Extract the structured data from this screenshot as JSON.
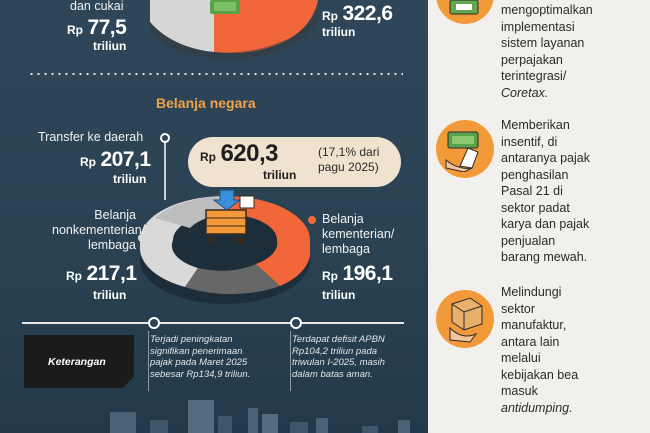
{
  "penerimaan": {
    "left_label_tail": "dan cukai",
    "left_prefix": "Rp",
    "left_value": "77,5",
    "left_unit": "triliun",
    "right_prefix": "Rp",
    "right_value": "322,6",
    "right_unit": "triliun"
  },
  "belanja": {
    "title": "Belanja negara",
    "transfer_label": "Transfer ke daerah",
    "transfer_prefix": "Rp",
    "transfer_value": "207,1",
    "transfer_unit": "triliun",
    "total_prefix": "Rp",
    "total_value": "620,3",
    "total_unit": "triliun",
    "total_note_line1": "(17,1% dari",
    "total_note_line2": "pagu 2025)",
    "nonkem_label_line1": "Belanja",
    "nonkem_label_line2": "nonkementerian/",
    "nonkem_label_line3": "lembaga",
    "nonkem_prefix": "Rp",
    "nonkem_value": "217,1",
    "nonkem_unit": "triliun",
    "kem_label_line1": "Belanja",
    "kem_label_line2": "kementerian/",
    "kem_label_line3": "lembaga",
    "kem_prefix": "Rp",
    "kem_value": "196,1",
    "kem_unit": "triliun"
  },
  "keterangan": {
    "badge": "Keterangan",
    "note1_line1": "Terjadi peningkatan",
    "note1_line2": "signifikan penerimaan",
    "note1_line3": "pajak pada Maret 2025",
    "note1_line4": "sebesar Rp134,9 triliun.",
    "note2_line1": "Terdapat defisit APBN",
    "note2_line2": "Rp104,2 triliun pada",
    "note2_line3": "triwulan I-2025, masih",
    "note2_line4": "dalam batas aman."
  },
  "kebijakan": {
    "item1_line1": "mengoptimalkan",
    "item1_line2": "implementasi",
    "item1_line3": "sistem layanan",
    "item1_line4": "perpajakan",
    "item1_line5": "terintegrasi/",
    "item1_line6": "Coretax.",
    "item2_line1": "Memberikan",
    "item2_line2": "insentif, di",
    "item2_line3": "antaranya pajak",
    "item2_line4": "penghasilan",
    "item2_line5": "Pasal 21 di",
    "item2_line6": "sektor padat",
    "item2_line7": "karya dan pajak",
    "item2_line8": "penjualan",
    "item2_line9": "barang mewah.",
    "item3_line1": "Melindungi",
    "item3_line2": "sektor",
    "item3_line3": "manufaktur,",
    "item3_line4": "antara lain",
    "item3_line5": "melalui",
    "item3_line6": "kebijakan bea",
    "item3_line7": "masuk",
    "item3_line8": "antidumping."
  },
  "colors": {
    "accent_orange": "#f1673a",
    "title_orange": "#f0a14a",
    "donut_grey": "#d7d7d7",
    "bg_navy": "#2b4355",
    "callout_cream": "#efe3cf"
  }
}
